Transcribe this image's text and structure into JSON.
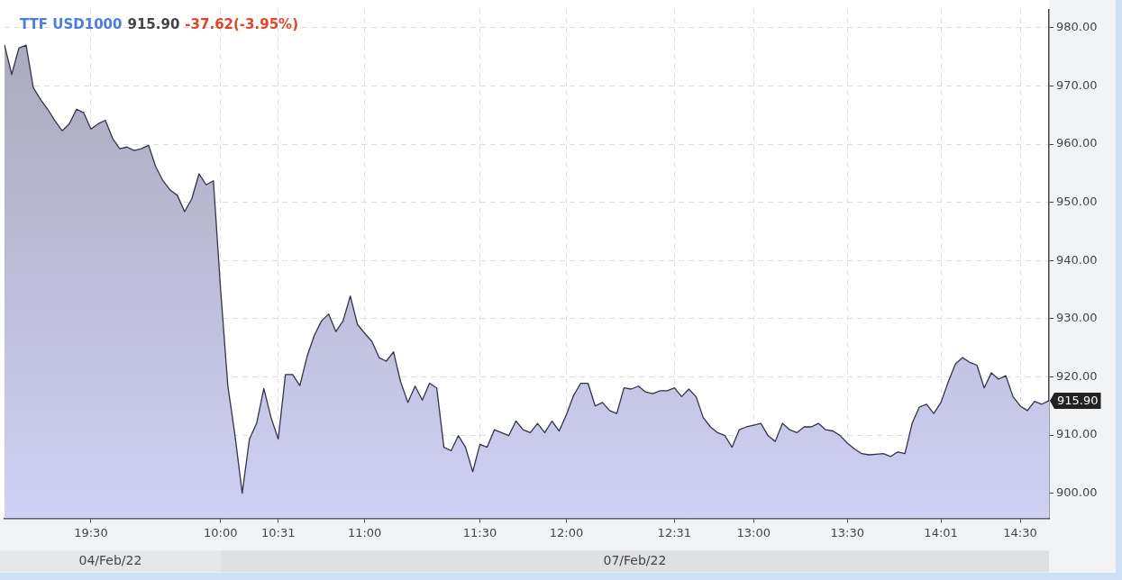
{
  "chart_data": {
    "type": "area",
    "title": "TTF USD1000",
    "subtitle": "915.90",
    "annotations": [
      "-37.62(-3.95%)",
      "915.90",
      "04/Feb/22",
      "07/Feb/22"
    ],
    "categories": [
      null,
      null,
      null,
      null,
      null,
      null,
      null,
      null,
      null,
      null,
      null,
      null,
      "19:30",
      null,
      null,
      null,
      null,
      null,
      null,
      null,
      null,
      null,
      null,
      null,
      null,
      null,
      null,
      null,
      null,
      null,
      "10:00",
      null,
      null,
      null,
      null,
      null,
      null,
      null,
      "10:31",
      null,
      null,
      null,
      null,
      null,
      null,
      null,
      null,
      null,
      null,
      null,
      "11:00",
      null,
      null,
      null,
      null,
      null,
      null,
      null,
      null,
      null,
      null,
      null,
      null,
      null,
      null,
      null,
      "11:30",
      null,
      null,
      null,
      null,
      null,
      null,
      null,
      null,
      null,
      null,
      null,
      "12:00",
      null,
      null,
      null,
      null,
      null,
      null,
      null,
      null,
      null,
      null,
      null,
      null,
      null,
      null,
      "12:31",
      null,
      null,
      null,
      null,
      null,
      null,
      null,
      null,
      null,
      null,
      "13:00",
      null,
      null,
      null,
      null,
      null,
      null,
      null,
      null,
      null,
      null,
      null,
      null,
      "13:30",
      null,
      null,
      null,
      null,
      null,
      null,
      null,
      null,
      null,
      null,
      null,
      null,
      "14:01",
      null,
      null,
      null,
      null,
      null,
      null,
      null,
      null,
      null,
      null,
      "14:30",
      null,
      null,
      null,
      null
    ],
    "series": [
      {
        "color": "#33334a",
        "values": [
          977,
          972,
          976.5,
          977,
          969.7,
          967.7,
          966,
          964,
          962.3,
          963.5,
          966,
          965.4,
          962.6,
          963.5,
          964.1,
          961,
          959.2,
          959.5,
          958.9,
          959.2,
          959.8,
          956.1,
          953.7,
          952.1,
          951.2,
          948.4,
          950.6,
          954.9,
          953,
          953.7,
          935,
          918.5,
          909.9,
          900,
          909.3,
          912,
          918,
          913,
          909.3,
          920.4,
          920.4,
          918.5,
          923.5,
          927.1,
          929.6,
          930.8,
          927.8,
          929.6,
          933.9,
          929,
          927.5,
          926.1,
          923.3,
          922.7,
          924.3,
          919.1,
          915.6,
          918.4,
          916,
          918.9,
          918.1,
          907.9,
          907.3,
          909.9,
          907.9,
          903.7,
          908.4,
          907.9,
          910.9,
          910.4,
          909.9,
          912.4,
          910.9,
          910.4,
          912,
          910.4,
          912.4,
          910.7,
          913.5,
          916.8,
          918.9,
          918.9,
          915,
          915.6,
          914.2,
          913.7,
          918.1,
          917.9,
          918.4,
          917.4,
          917.1,
          917.6,
          917.6,
          918.1,
          916.6,
          917.9,
          916.6,
          913,
          911.4,
          910.4,
          909.9,
          907.9,
          910.9,
          911.4,
          911.7,
          912,
          909.9,
          908.9,
          912,
          910.9,
          910.4,
          911.4,
          911.4,
          912,
          910.9,
          910.7,
          909.9,
          908.6,
          907.6,
          906.8,
          906.6,
          906.7,
          906.8,
          906.3,
          907.1,
          906.8,
          912,
          914.8,
          915.3,
          913.7,
          915.6,
          919.1,
          922.2,
          923.3,
          922.5,
          922,
          918.1,
          920.7,
          919.6,
          920.2,
          916.6,
          915,
          914.2,
          915.8,
          915.3,
          915.9
        ]
      }
    ],
    "ylim": [
      895.7,
      983.1
    ],
    "yticks": [
      {
        "value": 900,
        "label": "900.00"
      },
      {
        "value": 910,
        "label": "910.00"
      },
      {
        "value": 920,
        "label": "920.00"
      },
      {
        "value": 930,
        "label": "930.00"
      },
      {
        "value": 940,
        "label": "940.00"
      },
      {
        "value": 950,
        "label": "950.00"
      },
      {
        "value": 960,
        "label": "960.00"
      },
      {
        "value": 970,
        "label": "970.00"
      },
      {
        "value": 980,
        "label": "980.00"
      }
    ],
    "grid": true,
    "legend": false,
    "marker": "none"
  }
}
